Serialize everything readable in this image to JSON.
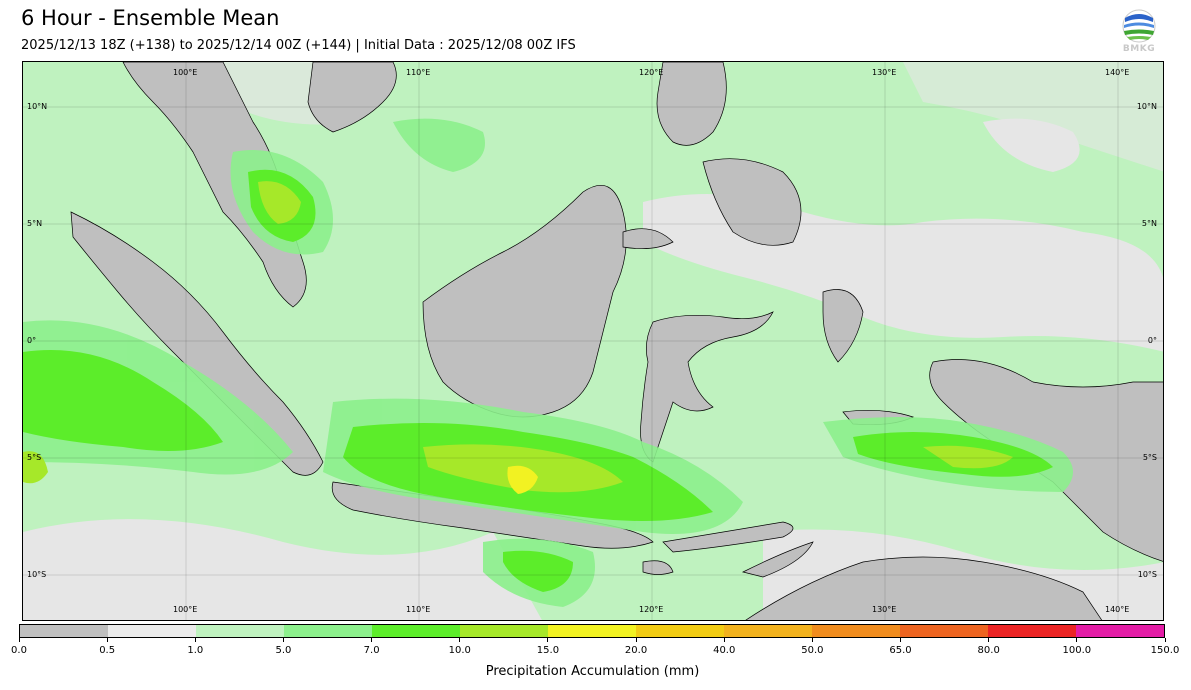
{
  "header": {
    "title": "6 Hour - Ensemble Mean",
    "subtitle": "2025/12/13 18Z (+138) to 2025/12/14 00Z (+144) | Initial Data : 2025/12/08 00Z IFS",
    "logo_text": "BMKG",
    "logo_icon": "globe-logo-icon"
  },
  "map": {
    "lon_labels_top": [
      "100°E",
      "110°E",
      "120°E",
      "130°E",
      "140°E"
    ],
    "lon_labels_bottom": [
      "100°E",
      "110°E",
      "120°E",
      "130°E",
      "140°E"
    ],
    "lat_labels_left": [
      "10°N",
      "5°N",
      "0°",
      "5°S",
      "10°S"
    ],
    "lat_labels_right": [
      "10°N",
      "5°N",
      "0°",
      "5°S",
      "10°S"
    ],
    "gridlines": true
  },
  "colorbar": {
    "title": "Precipitation Accumulation (mm)",
    "ticks": [
      "0.0",
      "0.5",
      "1.0",
      "5.0",
      "7.0",
      "10.0",
      "15.0",
      "20.0",
      "40.0",
      "50.0",
      "65.0",
      "80.0",
      "100.0",
      "150.0"
    ],
    "colors": [
      "#bfbfbf",
      "#ebebeb",
      "#bff2bf",
      "#8cf08c",
      "#5ced2a",
      "#a6e829",
      "#f2f222",
      "#f2cc14",
      "#f2b21e",
      "#f08c1e",
      "#ed6420",
      "#eb2424",
      "#e31ca6"
    ]
  }
}
